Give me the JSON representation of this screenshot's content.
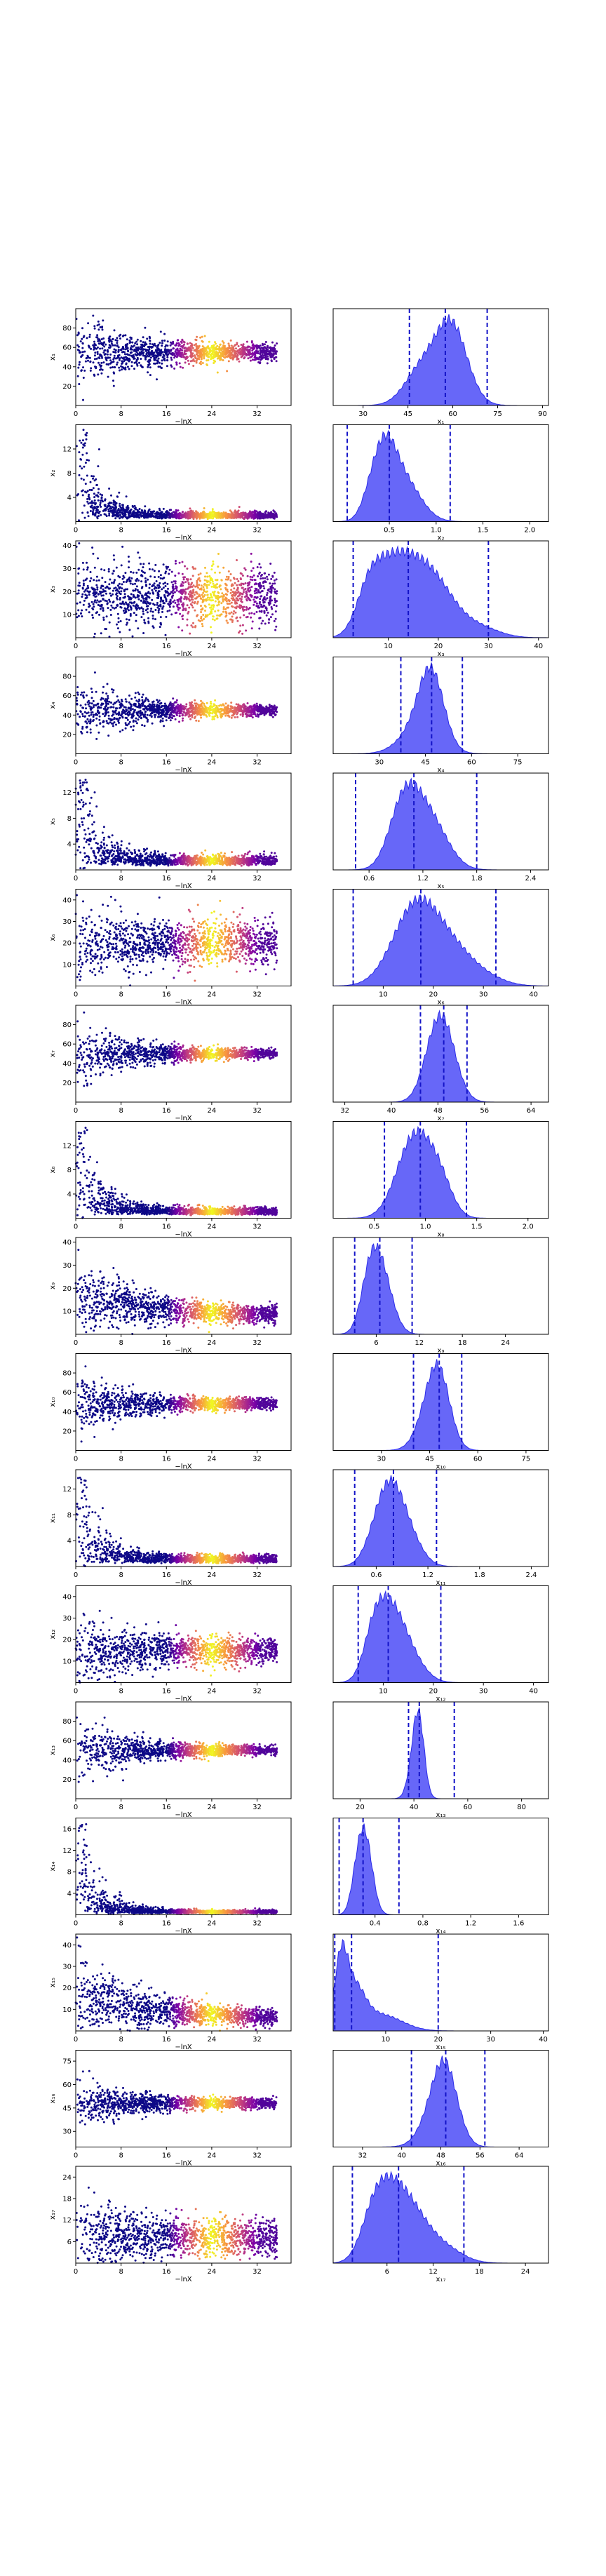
{
  "chart_data": [
    {
      "type": "scatter",
      "panel": 1,
      "ylabel": "x₁",
      "xlabel": "−lnX",
      "xticks": [
        "0",
        "8",
        "16",
        "24",
        "32"
      ],
      "xlim": [
        0,
        38
      ],
      "yticks": [
        "20",
        "40",
        "60",
        "80"
      ],
      "ylim": [
        0,
        100
      ],
      "center": 55,
      "spread_start": 40,
      "spread_end": 8
    },
    {
      "type": "area",
      "panel": 1,
      "xlabel": "x₁",
      "xticks": [
        "30",
        "45",
        "60",
        "75",
        "90"
      ],
      "xlim": [
        20,
        92
      ],
      "peaks": [
        [
          60,
          1.0,
          5
        ],
        [
          55,
          0.6,
          7
        ],
        [
          48,
          0.3,
          5
        ]
      ],
      "quantiles": [
        45.5,
        57.5,
        71.5
      ]
    },
    {
      "type": "scatter",
      "panel": 2,
      "ylabel": "x₂",
      "xlabel": "−lnX",
      "xticks": [
        "0",
        "8",
        "16",
        "24",
        "32"
      ],
      "xlim": [
        0,
        38
      ],
      "yticks": [
        "4",
        "8",
        "12"
      ],
      "ylim": [
        0,
        16
      ],
      "decay": true,
      "y_end": 0.7
    },
    {
      "type": "area",
      "panel": 2,
      "xlabel": "x₂",
      "xticks": [
        "0.5",
        "1.0",
        "1.5",
        "2.0"
      ],
      "xlim": [
        -0.1,
        2.2
      ],
      "peaks": [
        [
          0.45,
          1.0,
          0.12
        ],
        [
          0.65,
          0.7,
          0.18
        ],
        [
          0.3,
          0.3,
          0.1
        ]
      ],
      "quantiles": [
        0.05,
        0.5,
        1.15
      ]
    },
    {
      "type": "scatter",
      "panel": 3,
      "ylabel": "x₃",
      "xlabel": "−lnX",
      "xticks": [
        "0",
        "8",
        "16",
        "24",
        "32"
      ],
      "xlim": [
        0,
        38
      ],
      "yticks": [
        "10",
        "20",
        "30",
        "40"
      ],
      "ylim": [
        0,
        42
      ],
      "center": 18,
      "spread_start": 16,
      "spread_end": 12
    },
    {
      "type": "area",
      "panel": 3,
      "xlabel": "x₃",
      "xticks": [
        "10",
        "20",
        "30",
        "40"
      ],
      "xlim": [
        -1,
        42
      ],
      "peaks": [
        [
          10,
          1.0,
          3.5
        ],
        [
          15,
          0.95,
          4
        ],
        [
          20,
          0.75,
          4
        ],
        [
          6,
          0.7,
          2.5
        ],
        [
          28,
          0.2,
          4
        ]
      ],
      "quantiles": [
        3,
        14,
        30
      ]
    },
    {
      "type": "scatter",
      "panel": 4,
      "ylabel": "x₄",
      "xlabel": "−lnX",
      "xticks": [
        "0",
        "8",
        "16",
        "24",
        "32"
      ],
      "xlim": [
        0,
        38
      ],
      "yticks": [
        "20",
        "40",
        "60",
        "80"
      ],
      "ylim": [
        0,
        100
      ],
      "center": 45,
      "spread_start": 35,
      "spread_end": 5
    },
    {
      "type": "area",
      "panel": 4,
      "xlabel": "x₄",
      "xticks": [
        "30",
        "45",
        "60",
        "75"
      ],
      "xlim": [
        15,
        85
      ],
      "peaks": [
        [
          47,
          1.0,
          4
        ],
        [
          43,
          0.4,
          6
        ]
      ],
      "quantiles": [
        37,
        47,
        57
      ]
    },
    {
      "type": "scatter",
      "panel": 5,
      "ylabel": "x₅",
      "xlabel": "−lnX",
      "xticks": [
        "0",
        "8",
        "16",
        "24",
        "32"
      ],
      "xlim": [
        0,
        38
      ],
      "yticks": [
        "4",
        "8",
        "12"
      ],
      "ylim": [
        0,
        15
      ],
      "decay": true,
      "y_end": 1.0
    },
    {
      "type": "area",
      "panel": 5,
      "xlabel": "x₅",
      "xticks": [
        "0.6",
        "1.2",
        "1.8",
        "2.4"
      ],
      "xlim": [
        0.2,
        2.6
      ],
      "peaks": [
        [
          1.1,
          1.0,
          0.18
        ],
        [
          0.95,
          0.7,
          0.15
        ],
        [
          1.35,
          0.6,
          0.18
        ]
      ],
      "quantiles": [
        0.45,
        1.1,
        1.8
      ]
    },
    {
      "type": "scatter",
      "panel": 6,
      "ylabel": "x₆",
      "xlabel": "−lnX",
      "xticks": [
        "0",
        "8",
        "16",
        "24",
        "32"
      ],
      "xlim": [
        0,
        38
      ],
      "yticks": [
        "10",
        "20",
        "30",
        "40"
      ],
      "ylim": [
        0,
        45
      ],
      "center": 20,
      "spread_start": 16,
      "spread_end": 10
    },
    {
      "type": "area",
      "panel": 6,
      "xlabel": "x₆",
      "xticks": [
        "10",
        "20",
        "30",
        "40"
      ],
      "xlim": [
        0,
        43
      ],
      "peaks": [
        [
          18,
          1.0,
          4
        ],
        [
          14,
          0.6,
          4
        ],
        [
          24,
          0.5,
          4
        ],
        [
          30,
          0.15,
          4
        ]
      ],
      "quantiles": [
        4,
        17.5,
        32.5
      ]
    },
    {
      "type": "scatter",
      "panel": 7,
      "ylabel": "x₇",
      "xlabel": "−lnX",
      "xticks": [
        "0",
        "8",
        "16",
        "24",
        "32"
      ],
      "xlim": [
        0,
        38
      ],
      "yticks": [
        "20",
        "40",
        "60",
        "80"
      ],
      "ylim": [
        0,
        100
      ],
      "center": 50,
      "spread_start": 35,
      "spread_end": 4
    },
    {
      "type": "area",
      "panel": 7,
      "xlabel": "x₇",
      "xticks": [
        "32",
        "40",
        "48",
        "56",
        "64"
      ],
      "xlim": [
        30,
        67
      ],
      "peaks": [
        [
          49,
          1.0,
          2.2
        ],
        [
          47,
          0.4,
          2
        ]
      ],
      "quantiles": [
        45,
        49,
        53
      ]
    },
    {
      "type": "scatter",
      "panel": 8,
      "ylabel": "x₈",
      "xlabel": "−lnX",
      "xticks": [
        "0",
        "8",
        "16",
        "24",
        "32"
      ],
      "xlim": [
        0,
        38
      ],
      "yticks": [
        "4",
        "8",
        "12"
      ],
      "ylim": [
        0,
        16
      ],
      "decay": true,
      "y_end": 0.8
    },
    {
      "type": "area",
      "panel": 8,
      "xlabel": "x₈",
      "xticks": [
        "0.5",
        "1.0",
        "1.5",
        "2.0"
      ],
      "xlim": [
        0.1,
        2.2
      ],
      "peaks": [
        [
          0.95,
          1.0,
          0.15
        ],
        [
          0.8,
          0.6,
          0.15
        ],
        [
          1.15,
          0.5,
          0.12
        ]
      ],
      "quantiles": [
        0.6,
        0.95,
        1.4
      ]
    },
    {
      "type": "scatter",
      "panel": 9,
      "ylabel": "x₉",
      "xlabel": "−lnX",
      "xticks": [
        "0",
        "8",
        "16",
        "24",
        "32"
      ],
      "xlim": [
        0,
        38
      ],
      "yticks": [
        "10",
        "20",
        "30",
        "40"
      ],
      "ylim": [
        0,
        42
      ],
      "decay_mid": true,
      "center": 8,
      "spread_start": 16,
      "spread_end": 3
    },
    {
      "type": "area",
      "panel": 9,
      "xlabel": "x₉",
      "xticks": [
        "6",
        "12",
        "18",
        "24"
      ],
      "xlim": [
        0,
        30
      ],
      "peaks": [
        [
          6.5,
          1.0,
          1.6
        ],
        [
          5,
          0.5,
          1.2
        ]
      ],
      "quantiles": [
        3,
        6.5,
        11
      ]
    },
    {
      "type": "scatter",
      "panel": 10,
      "ylabel": "x₁₀",
      "xlabel": "−lnX",
      "xticks": [
        "0",
        "8",
        "16",
        "24",
        "32"
      ],
      "xlim": [
        0,
        38
      ],
      "yticks": [
        "20",
        "40",
        "60",
        "80"
      ],
      "ylim": [
        0,
        100
      ],
      "center": 48,
      "spread_start": 32,
      "spread_end": 5
    },
    {
      "type": "area",
      "panel": 10,
      "xlabel": "x₁₀",
      "xticks": [
        "30",
        "45",
        "60",
        "75"
      ],
      "xlim": [
        15,
        82
      ],
      "peaks": [
        [
          48,
          1.0,
          3.5
        ],
        [
          45,
          0.5,
          4
        ]
      ],
      "quantiles": [
        40,
        48,
        55
      ]
    },
    {
      "type": "scatter",
      "panel": 11,
      "ylabel": "x₁₁",
      "xlabel": "−lnX",
      "xticks": [
        "0",
        "8",
        "16",
        "24",
        "32"
      ],
      "xlim": [
        0,
        38
      ],
      "yticks": [
        "4",
        "8",
        "12"
      ],
      "ylim": [
        0,
        15
      ],
      "decay": true,
      "y_end": 0.8
    },
    {
      "type": "area",
      "panel": 11,
      "xlabel": "x₁₁",
      "xticks": [
        "0.6",
        "1.2",
        "1.8",
        "2.4"
      ],
      "xlim": [
        0.1,
        2.6
      ],
      "peaks": [
        [
          0.8,
          1.0,
          0.15
        ],
        [
          0.65,
          0.7,
          0.15
        ],
        [
          1.0,
          0.4,
          0.15
        ]
      ],
      "quantiles": [
        0.35,
        0.8,
        1.3
      ]
    },
    {
      "type": "scatter",
      "panel": 12,
      "ylabel": "x₁₂",
      "xlabel": "−lnX",
      "xticks": [
        "0",
        "8",
        "16",
        "24",
        "32"
      ],
      "xlim": [
        0,
        38
      ],
      "yticks": [
        "10",
        "20",
        "30",
        "40"
      ],
      "ylim": [
        0,
        45
      ],
      "center": 15,
      "spread_start": 18,
      "spread_end": 6
    },
    {
      "type": "area",
      "panel": 12,
      "xlabel": "x₁₂",
      "xticks": [
        "10",
        "20",
        "30",
        "40"
      ],
      "xlim": [
        0,
        43
      ],
      "peaks": [
        [
          11,
          1.0,
          2.8
        ],
        [
          8,
          0.5,
          2
        ],
        [
          15,
          0.4,
          3
        ]
      ],
      "quantiles": [
        5,
        11,
        21.5
      ]
    },
    {
      "type": "scatter",
      "panel": 13,
      "ylabel": "x₁₃",
      "xlabel": "−lnX",
      "xticks": [
        "0",
        "8",
        "16",
        "24",
        "32"
      ],
      "xlim": [
        0,
        38
      ],
      "yticks": [
        "20",
        "40",
        "60",
        "80"
      ],
      "ylim": [
        0,
        100
      ],
      "center": 50,
      "spread_start": 35,
      "spread_end": 4
    },
    {
      "type": "area",
      "panel": 13,
      "xlabel": "x₁₃",
      "xticks": [
        "20",
        "40",
        "60",
        "80"
      ],
      "xlim": [
        10,
        90
      ],
      "peaks": [
        [
          42,
          1.0,
          2
        ],
        [
          40,
          0.5,
          2.2
        ]
      ],
      "quantiles": [
        38,
        42,
        55
      ]
    },
    {
      "type": "scatter",
      "panel": 14,
      "ylabel": "x₁₄",
      "xlabel": "−lnX",
      "xticks": [
        "0",
        "8",
        "16",
        "24",
        "32"
      ],
      "xlim": [
        0,
        38
      ],
      "yticks": [
        "4",
        "8",
        "12",
        "16"
      ],
      "ylim": [
        0,
        18
      ],
      "decay": true,
      "y_end": 0.4
    },
    {
      "type": "area",
      "panel": 14,
      "xlabel": "x₁₄",
      "xticks": [
        "0.4",
        "0.8",
        "1.2",
        "1.6"
      ],
      "xlim": [
        0.05,
        1.85
      ],
      "peaks": [
        [
          0.32,
          1.0,
          0.06
        ],
        [
          0.25,
          0.4,
          0.05
        ]
      ],
      "quantiles": [
        0.1,
        0.3,
        0.6
      ]
    },
    {
      "type": "scatter",
      "panel": 15,
      "ylabel": "x₁₅",
      "xlabel": "−lnX",
      "xticks": [
        "0",
        "8",
        "16",
        "24",
        "32"
      ],
      "xlim": [
        0,
        38
      ],
      "yticks": [
        "10",
        "20",
        "30",
        "40"
      ],
      "ylim": [
        0,
        45
      ],
      "decay_mid": true,
      "center": 6,
      "spread_start": 20,
      "spread_end": 3
    },
    {
      "type": "area",
      "panel": 15,
      "xlabel": "x₁₅",
      "xticks": [
        "10",
        "20",
        "30",
        "40"
      ],
      "xlim": [
        0,
        41
      ],
      "peaks": [
        [
          1.5,
          1.0,
          1.2
        ],
        [
          4,
          0.6,
          2
        ],
        [
          9,
          0.25,
          4
        ]
      ],
      "quantiles": [
        0.3,
        3.5,
        20
      ]
    },
    {
      "type": "scatter",
      "panel": 16,
      "ylabel": "x₁₆",
      "xlabel": "−lnX",
      "xticks": [
        "0",
        "8",
        "16",
        "24",
        "32"
      ],
      "xlim": [
        0,
        38
      ],
      "yticks": [
        "30",
        "45",
        "60",
        "75"
      ],
      "ylim": [
        20,
        82
      ],
      "center": 48,
      "spread_start": 16,
      "spread_end": 3
    },
    {
      "type": "area",
      "panel": 16,
      "xlabel": "x₁₆",
      "xticks": [
        "32",
        "40",
        "48",
        "56",
        "64"
      ],
      "xlim": [
        26,
        70
      ],
      "peaks": [
        [
          49,
          1.0,
          2.5
        ],
        [
          47,
          0.5,
          3
        ]
      ],
      "quantiles": [
        42,
        49,
        57
      ]
    },
    {
      "type": "scatter",
      "panel": 17,
      "ylabel": "x₁₇",
      "xlabel": "−lnX",
      "xticks": [
        "0",
        "8",
        "16",
        "24",
        "32"
      ],
      "xlim": [
        0,
        38
      ],
      "yticks": [
        "6",
        "12",
        "18",
        "24"
      ],
      "ylim": [
        0,
        27
      ],
      "center": 7,
      "spread_start": 12,
      "spread_end": 5
    },
    {
      "type": "area",
      "panel": 17,
      "xlabel": "x₁₇",
      "xticks": [
        "6",
        "12",
        "18",
        "24"
      ],
      "xlim": [
        -1,
        27
      ],
      "peaks": [
        [
          6,
          1.0,
          2
        ],
        [
          9,
          0.8,
          2.2
        ],
        [
          4,
          0.5,
          1.6
        ],
        [
          13,
          0.3,
          2.5
        ]
      ],
      "quantiles": [
        1.5,
        7.5,
        16
      ]
    }
  ]
}
